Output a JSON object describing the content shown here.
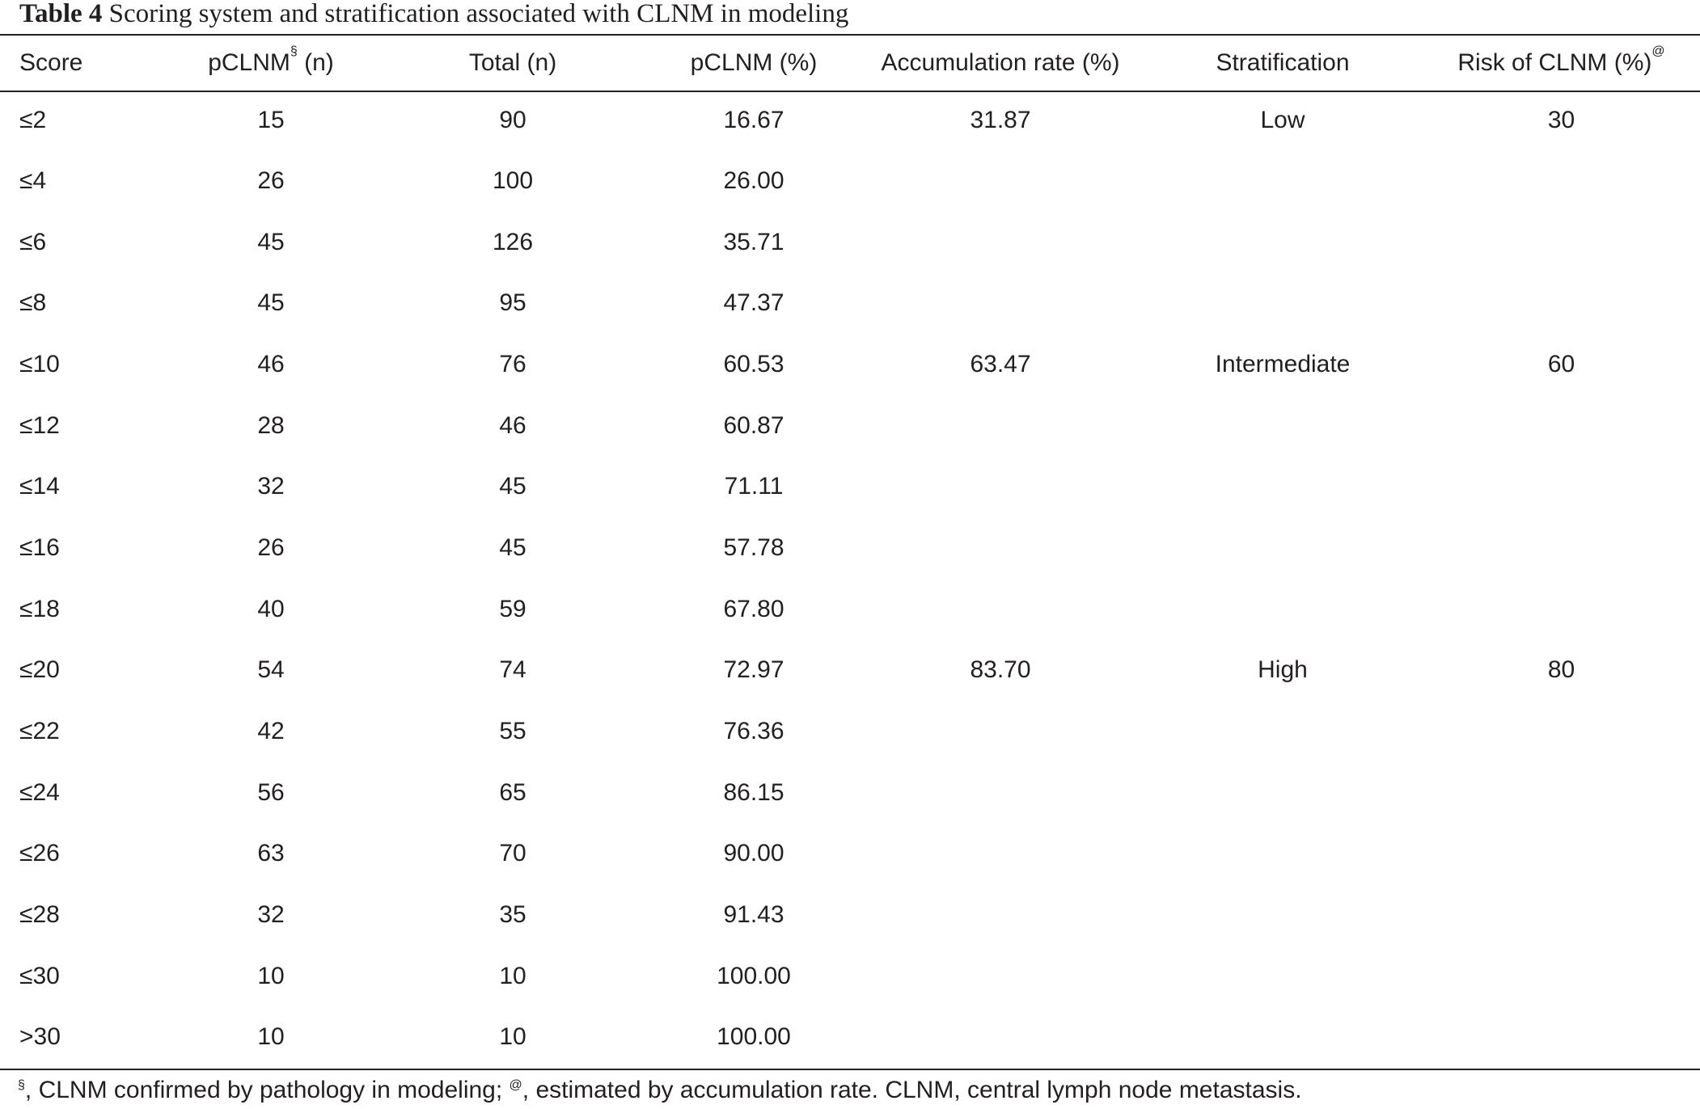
{
  "caption": {
    "label": "Table 4",
    "text": "Scoring system and stratification associated with CLNM in modeling"
  },
  "table": {
    "headers": {
      "score": "Score",
      "pclnm_n": "pCLNM",
      "pclnm_n_sup": "§",
      "pclnm_n_suffix": " (n)",
      "total": "Total (n)",
      "pclnm_pct": "pCLNM (%)",
      "accumulation": "Accumulation rate (%)",
      "stratification": "Stratification",
      "risk": "Risk of CLNM (%)",
      "risk_sup": "@"
    },
    "rows": [
      {
        "score": "≤2",
        "pclnm_n": "15",
        "total": "90",
        "pclnm_pct": "16.67",
        "accumulation": "31.87",
        "stratification": "Low",
        "risk": "30"
      },
      {
        "score": "≤4",
        "pclnm_n": "26",
        "total": "100",
        "pclnm_pct": "26.00",
        "accumulation": "",
        "stratification": "",
        "risk": ""
      },
      {
        "score": "≤6",
        "pclnm_n": "45",
        "total": "126",
        "pclnm_pct": "35.71",
        "accumulation": "",
        "stratification": "",
        "risk": ""
      },
      {
        "score": "≤8",
        "pclnm_n": "45",
        "total": "95",
        "pclnm_pct": "47.37",
        "accumulation": "",
        "stratification": "",
        "risk": ""
      },
      {
        "score": "≤10",
        "pclnm_n": "46",
        "total": "76",
        "pclnm_pct": "60.53",
        "accumulation": "63.47",
        "stratification": "Intermediate",
        "risk": "60"
      },
      {
        "score": "≤12",
        "pclnm_n": "28",
        "total": "46",
        "pclnm_pct": "60.87",
        "accumulation": "",
        "stratification": "",
        "risk": ""
      },
      {
        "score": "≤14",
        "pclnm_n": "32",
        "total": "45",
        "pclnm_pct": "71.11",
        "accumulation": "",
        "stratification": "",
        "risk": ""
      },
      {
        "score": "≤16",
        "pclnm_n": "26",
        "total": "45",
        "pclnm_pct": "57.78",
        "accumulation": "",
        "stratification": "",
        "risk": ""
      },
      {
        "score": "≤18",
        "pclnm_n": "40",
        "total": "59",
        "pclnm_pct": "67.80",
        "accumulation": "",
        "stratification": "",
        "risk": ""
      },
      {
        "score": "≤20",
        "pclnm_n": "54",
        "total": "74",
        "pclnm_pct": "72.97",
        "accumulation": "83.70",
        "stratification": "High",
        "risk": "80"
      },
      {
        "score": "≤22",
        "pclnm_n": "42",
        "total": "55",
        "pclnm_pct": "76.36",
        "accumulation": "",
        "stratification": "",
        "risk": ""
      },
      {
        "score": "≤24",
        "pclnm_n": "56",
        "total": "65",
        "pclnm_pct": "86.15",
        "accumulation": "",
        "stratification": "",
        "risk": ""
      },
      {
        "score": "≤26",
        "pclnm_n": "63",
        "total": "70",
        "pclnm_pct": "90.00",
        "accumulation": "",
        "stratification": "",
        "risk": ""
      },
      {
        "score": "≤28",
        "pclnm_n": "32",
        "total": "35",
        "pclnm_pct": "91.43",
        "accumulation": "",
        "stratification": "",
        "risk": ""
      },
      {
        "score": "≤30",
        "pclnm_n": "10",
        "total": "10",
        "pclnm_pct": "100.00",
        "accumulation": "",
        "stratification": "",
        "risk": ""
      },
      {
        "score": ">30",
        "pclnm_n": "10",
        "total": "10",
        "pclnm_pct": "100.00",
        "accumulation": "",
        "stratification": "",
        "risk": ""
      }
    ]
  },
  "footnote": {
    "sup1": "§",
    "text1": ", CLNM confirmed by pathology in modeling; ",
    "sup2": "@",
    "text2": ", estimated by accumulation rate. CLNM, central lymph node metastasis."
  }
}
